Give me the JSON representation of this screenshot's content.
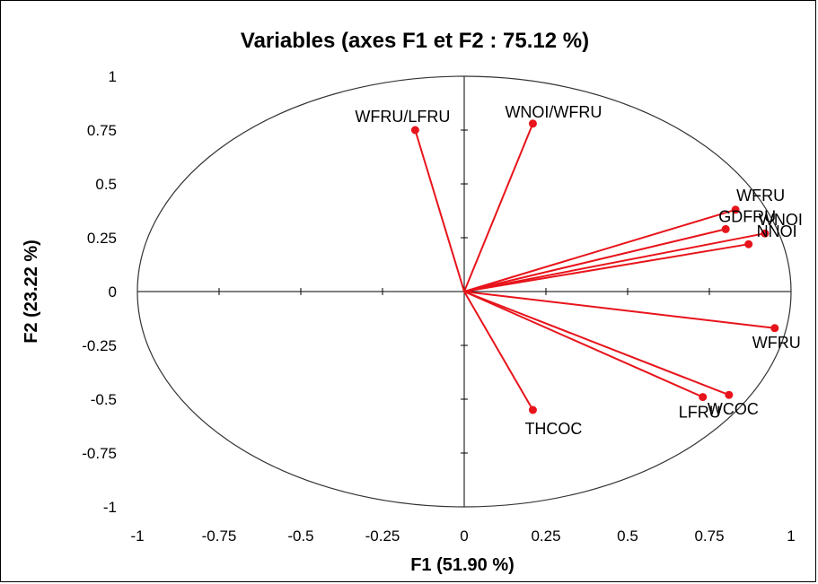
{
  "chart_data": {
    "type": "scatter",
    "subtype": "pca-correlation-circle",
    "title": "Variables (axes F1 et F2 : 75.12 %)",
    "xlabel": "F1 (51.90 %)",
    "ylabel": "F2 (23.22 %)",
    "xlim": [
      -1,
      1
    ],
    "ylim": [
      -1,
      1
    ],
    "x_ticks": [
      "-1",
      "-0.75",
      "-0.5",
      "-0.25",
      "0",
      "0.25",
      "0.5",
      "0.75",
      "1"
    ],
    "y_ticks": [
      "1",
      "0.75",
      "0.5",
      "0.25",
      "0",
      "-0.25",
      "-0.5",
      "-0.75",
      "-1"
    ],
    "grid": false,
    "unit_circle": true,
    "vector_color": "#e8141b",
    "variables": [
      {
        "label": "WFRU/LFRU",
        "x": -0.15,
        "y": 0.75
      },
      {
        "label": "WNOI/WFRU",
        "x": 0.21,
        "y": 0.78
      },
      {
        "label": "WFRU",
        "x": 0.83,
        "y": 0.38
      },
      {
        "label": "GDFRU",
        "x": 0.8,
        "y": 0.29
      },
      {
        "label": "WNOI",
        "x": 0.92,
        "y": 0.27
      },
      {
        "label": "NNOI",
        "x": 0.87,
        "y": 0.22
      },
      {
        "label": "WFRU",
        "x": 0.95,
        "y": -0.17
      },
      {
        "label": "LFRU",
        "x": 0.73,
        "y": -0.49
      },
      {
        "label": "WCOC",
        "x": 0.81,
        "y": -0.48
      },
      {
        "label": "THCOC",
        "x": 0.21,
        "y": -0.55
      }
    ]
  }
}
